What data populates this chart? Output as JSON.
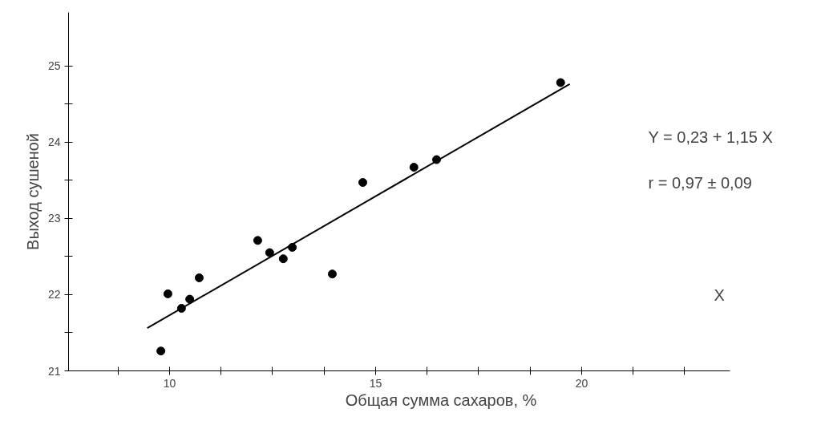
{
  "chart_data": {
    "type": "scatter",
    "xlabel": "Общая сумма сахаров, %",
    "ylabel": "Выход сушеной",
    "annotations": [
      "Y = 0,23 + 1,15 X",
      "r = 0,97 ± 0,09",
      "X"
    ],
    "xlim": [
      7.55,
      23.6
    ],
    "ylim": [
      21,
      25.7
    ],
    "xticks": [
      {
        "value": 8.75,
        "label": null
      },
      10,
      {
        "value": 11.25,
        "label": null
      },
      {
        "value": 12.5,
        "label": null
      },
      {
        "value": 13.75,
        "label": null
      },
      15,
      {
        "value": 16.25,
        "label": null
      },
      {
        "value": 17.5,
        "label": null
      },
      {
        "value": 18.75,
        "label": null
      },
      20,
      {
        "value": 21.25,
        "label": null
      },
      {
        "value": 22.5,
        "label": null
      }
    ],
    "yticks": [
      21,
      {
        "value": 21.5,
        "label": null
      },
      22,
      {
        "value": 22.5,
        "label": null
      },
      23,
      {
        "value": 23.5,
        "label": null
      },
      24,
      {
        "value": 24.5,
        "label": null
      },
      25
    ],
    "grid": false,
    "series": [
      {
        "marker": "circle",
        "color": "#000000",
        "x": [
          9.79,
          9.96,
          10.29,
          10.49,
          10.72,
          12.14,
          12.43,
          12.76,
          12.98,
          13.95,
          14.69,
          15.93,
          16.48,
          19.49
        ],
        "values": [
          21.26,
          22.01,
          21.82,
          21.94,
          22.22,
          22.71,
          22.55,
          22.47,
          22.62,
          22.27,
          23.47,
          23.67,
          23.77,
          24.78
        ]
      },
      {
        "type": "line",
        "color": "#000000",
        "line_style": "solid",
        "x": [
          9.46,
          19.71
        ],
        "values": [
          21.56,
          24.76
        ]
      }
    ]
  }
}
